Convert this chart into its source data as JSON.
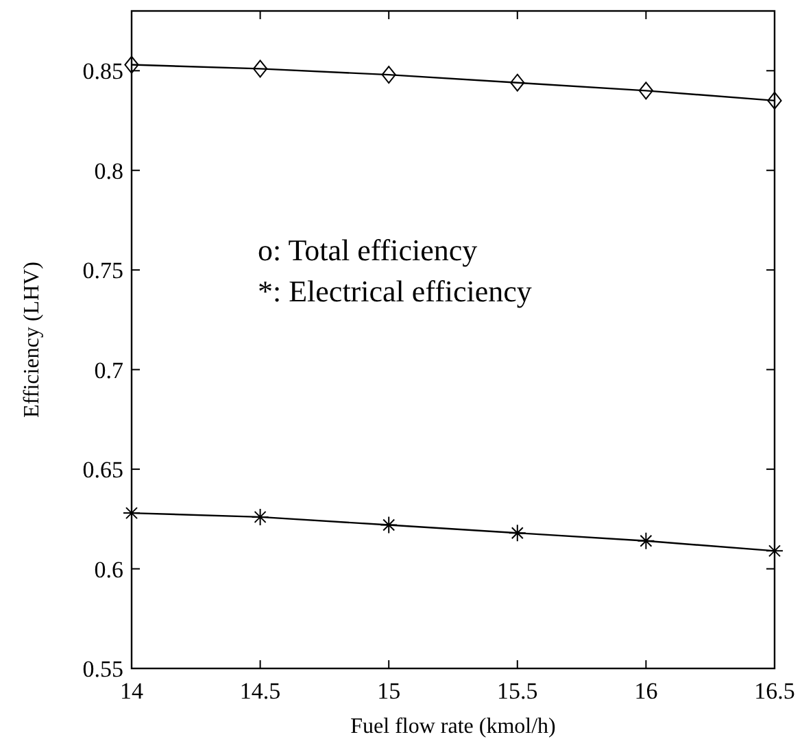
{
  "chart_data": {
    "type": "line",
    "xlabel": "Fuel flow rate (kmol/h)",
    "ylabel": "Efficiency (LHV)",
    "annotations": [
      "o: Total efficiency",
      "*: Electrical efficiency"
    ],
    "x": [
      14,
      14.5,
      15,
      15.5,
      16,
      16.5
    ],
    "series": [
      {
        "color": "#000000",
        "marker": "diamond",
        "values": [
          0.853,
          0.851,
          0.848,
          0.844,
          0.84,
          0.835
        ]
      },
      {
        "color": "#000000",
        "marker": "cross",
        "values": [
          0.628,
          0.626,
          0.622,
          0.618,
          0.614,
          0.609
        ]
      }
    ],
    "xlim": [
      14,
      16.5
    ],
    "xticks": [
      14,
      14.5,
      15,
      15.5,
      16,
      16.5
    ],
    "ylim": [
      0.55,
      0.88
    ],
    "yticks": [
      0.55,
      0.6,
      0.65,
      0.7,
      0.75,
      0.8,
      0.85
    ],
    "line_style": "solid"
  }
}
